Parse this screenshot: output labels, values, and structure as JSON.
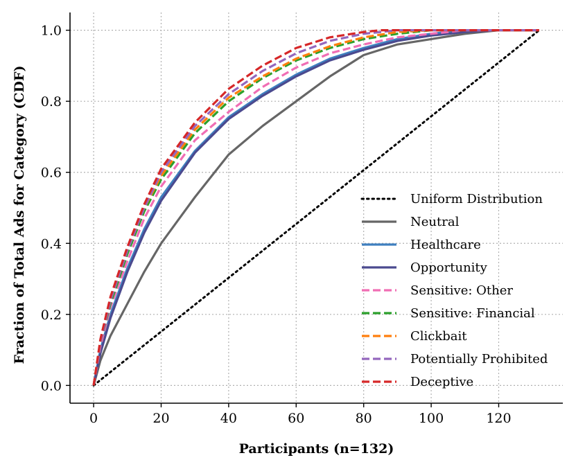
{
  "chart_data": {
    "type": "line",
    "title": "",
    "xlabel": "Participants (n=132)",
    "ylabel": "Fraction of Total Ads for Category (CDF)",
    "xlim": [
      -7,
      139
    ],
    "ylim": [
      -0.05,
      1.05
    ],
    "xticks": [
      0,
      20,
      40,
      60,
      80,
      100,
      120
    ],
    "yticks": [
      0.0,
      0.2,
      0.4,
      0.6,
      0.8,
      1.0
    ],
    "xtick_labels": [
      "0",
      "20",
      "40",
      "60",
      "80",
      "100",
      "120"
    ],
    "ytick_labels": [
      "0.0",
      "0.2",
      "0.4",
      "0.6",
      "0.8",
      "1.0"
    ],
    "grid": true,
    "legend_position": "lower-right",
    "series": [
      {
        "name": "Uniform Distribution",
        "color": "#000000",
        "style": "dotted",
        "x": [
          0,
          132
        ],
        "y": [
          0.0,
          1.0
        ]
      },
      {
        "name": "Neutral",
        "color": "#666666",
        "style": "solid",
        "x": [
          0,
          2,
          5,
          10,
          15,
          20,
          30,
          40,
          50,
          60,
          70,
          80,
          90,
          100,
          110,
          120,
          132
        ],
        "y": [
          0.0,
          0.07,
          0.14,
          0.23,
          0.32,
          0.4,
          0.53,
          0.65,
          0.73,
          0.8,
          0.87,
          0.93,
          0.96,
          0.975,
          0.99,
          1.0,
          1.0
        ]
      },
      {
        "name": "Healthcare",
        "color": "#3f7fbf",
        "style": "solid",
        "x": [
          0,
          2,
          5,
          10,
          15,
          20,
          30,
          40,
          50,
          60,
          70,
          80,
          90,
          100,
          110,
          120,
          132
        ],
        "y": [
          0.0,
          0.1,
          0.2,
          0.33,
          0.44,
          0.53,
          0.66,
          0.755,
          0.82,
          0.875,
          0.92,
          0.95,
          0.975,
          0.99,
          1.0,
          1.0,
          1.0
        ]
      },
      {
        "name": "Opportunity",
        "color": "#4b4a8f",
        "style": "solid",
        "x": [
          0,
          2,
          5,
          10,
          15,
          20,
          30,
          40,
          50,
          60,
          70,
          80,
          90,
          100,
          110,
          120,
          132
        ],
        "y": [
          0.0,
          0.09,
          0.19,
          0.32,
          0.43,
          0.52,
          0.655,
          0.75,
          0.815,
          0.87,
          0.915,
          0.945,
          0.97,
          0.985,
          0.995,
          1.0,
          1.0
        ]
      },
      {
        "name": "Sensitive: Other",
        "color": "#f06eb4",
        "style": "dashed",
        "x": [
          0,
          2,
          5,
          10,
          15,
          20,
          30,
          40,
          50,
          60,
          70,
          80,
          90,
          100,
          110,
          120,
          132
        ],
        "y": [
          0.0,
          0.11,
          0.22,
          0.35,
          0.47,
          0.56,
          0.69,
          0.77,
          0.84,
          0.895,
          0.935,
          0.96,
          0.98,
          0.99,
          1.0,
          1.0,
          1.0
        ]
      },
      {
        "name": "Sensitive: Financial",
        "color": "#2ca02c",
        "style": "dashed",
        "x": [
          0,
          2,
          5,
          10,
          15,
          20,
          30,
          40,
          50,
          60,
          70,
          80,
          90,
          100,
          110,
          120,
          132
        ],
        "y": [
          0.0,
          0.12,
          0.23,
          0.37,
          0.49,
          0.58,
          0.71,
          0.8,
          0.865,
          0.915,
          0.95,
          0.975,
          0.99,
          1.0,
          1.0,
          1.0,
          1.0
        ]
      },
      {
        "name": "Clickbait",
        "color": "#ff7f0e",
        "style": "dashed",
        "x": [
          0,
          2,
          5,
          10,
          15,
          20,
          30,
          40,
          50,
          60,
          70,
          80,
          90,
          100,
          110,
          120,
          132
        ],
        "y": [
          0.0,
          0.12,
          0.24,
          0.38,
          0.5,
          0.59,
          0.72,
          0.81,
          0.87,
          0.92,
          0.955,
          0.98,
          0.995,
          1.0,
          1.0,
          1.0,
          1.0
        ]
      },
      {
        "name": "Potentially Prohibited",
        "color": "#9467bd",
        "style": "dashed",
        "x": [
          0,
          2,
          5,
          10,
          15,
          20,
          30,
          40,
          50,
          60,
          70,
          80,
          90,
          100,
          110,
          120,
          132
        ],
        "y": [
          0.0,
          0.12,
          0.24,
          0.38,
          0.5,
          0.6,
          0.73,
          0.82,
          0.885,
          0.935,
          0.97,
          0.99,
          1.0,
          1.0,
          1.0,
          1.0,
          1.0
        ]
      },
      {
        "name": "Deceptive",
        "color": "#d62728",
        "style": "dashed",
        "x": [
          0,
          2,
          5,
          10,
          15,
          20,
          30,
          40,
          50,
          60,
          70,
          80,
          85,
          90,
          100,
          110,
          120,
          132
        ],
        "y": [
          0.0,
          0.13,
          0.25,
          0.39,
          0.51,
          0.61,
          0.74,
          0.835,
          0.9,
          0.95,
          0.98,
          0.995,
          1.0,
          1.0,
          1.0,
          1.0,
          1.0,
          1.0
        ]
      }
    ]
  }
}
